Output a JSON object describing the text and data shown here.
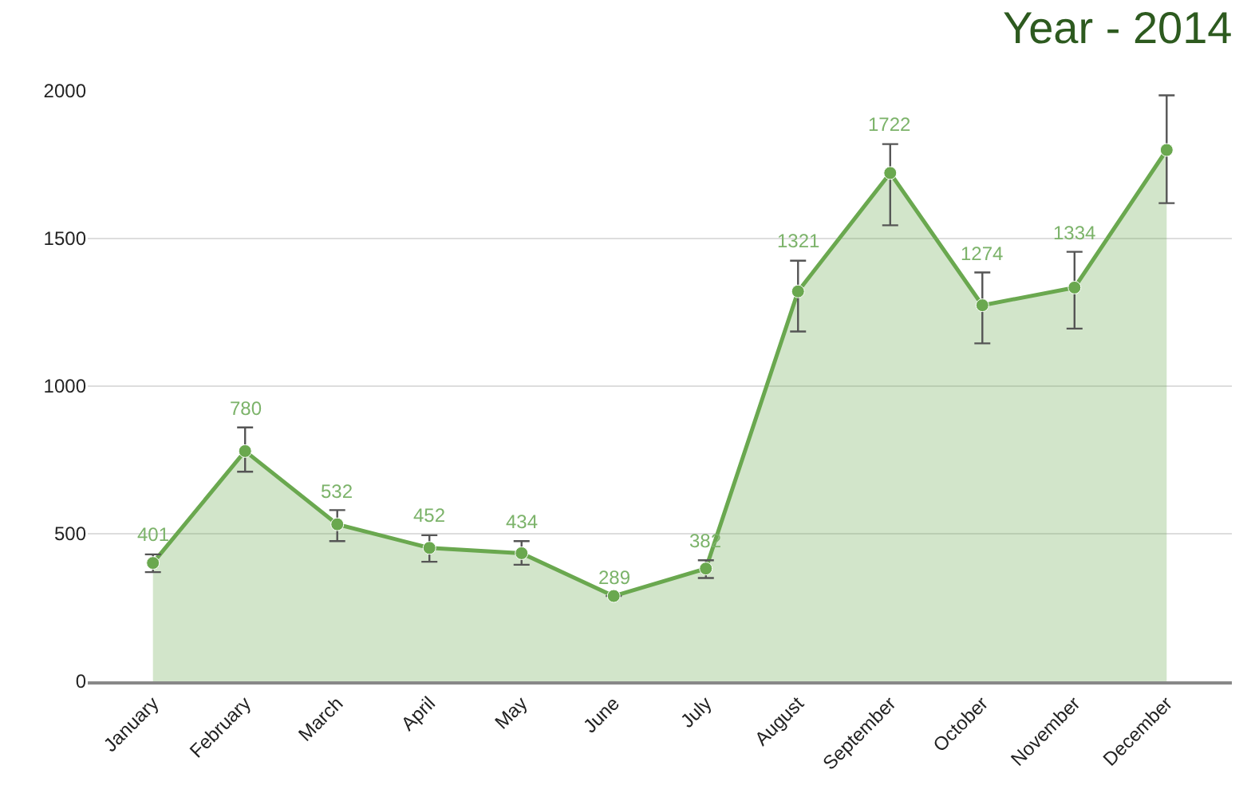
{
  "chart_data": {
    "type": "area",
    "title": "Year - 2014",
    "categories": [
      "January",
      "February",
      "March",
      "April",
      "May",
      "June",
      "July",
      "August",
      "September",
      "October",
      "November",
      "December"
    ],
    "series": [
      {
        "color": "#6aa84f",
        "values": [
          401,
          780,
          532,
          452,
          434,
          289,
          382,
          1321,
          1722,
          1274,
          1334,
          1800
        ],
        "value_labels": [
          "401",
          "780",
          "532",
          "452",
          "434",
          "289",
          "382",
          "1321",
          "1722",
          "1274",
          "1334",
          null
        ],
        "errors": [
          [
            370,
            430
          ],
          [
            710,
            860
          ],
          [
            475,
            580
          ],
          [
            405,
            495
          ],
          [
            395,
            475
          ],
          null,
          [
            350,
            410
          ],
          [
            1185,
            1425
          ],
          [
            1545,
            1820
          ],
          [
            1145,
            1385
          ],
          [
            1195,
            1455
          ],
          [
            1620,
            1985
          ]
        ]
      }
    ],
    "ylim": [
      0,
      2000
    ],
    "yticks": [
      0,
      500,
      1000,
      1500,
      2000
    ],
    "grid": "y",
    "marker": "circle",
    "line_style": "solid"
  }
}
